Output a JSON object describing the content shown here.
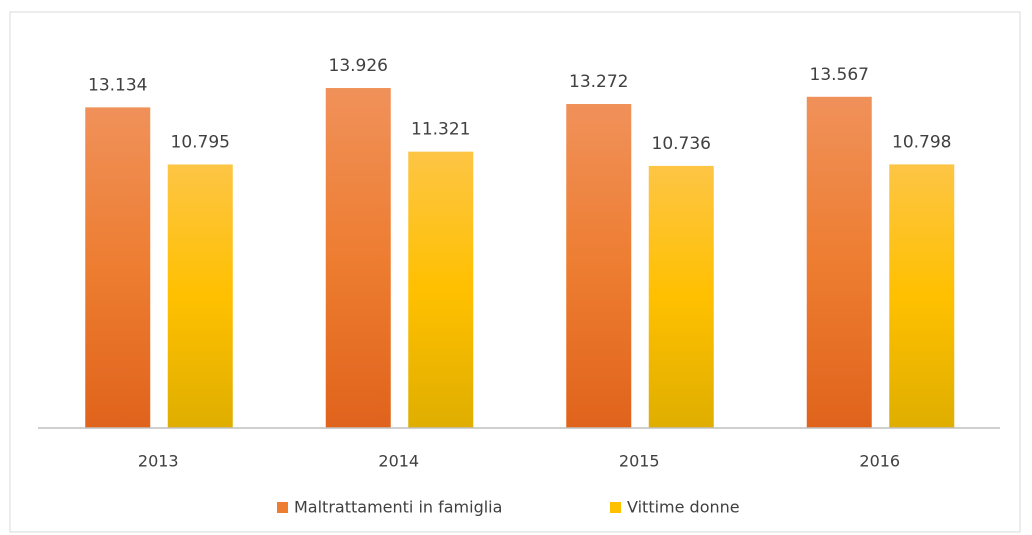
{
  "chart_data": {
    "type": "bar",
    "categories": [
      "2013",
      "2014",
      "2015",
      "2016"
    ],
    "series": [
      {
        "name": "Maltrattamenti in famiglia",
        "color": "#ed7d31",
        "values": [
          13134,
          13926,
          13272,
          13567
        ],
        "value_labels": [
          "13.134",
          "13.926",
          "13.272",
          "13.567"
        ]
      },
      {
        "name": "Vittime donne",
        "color": "#ffc000",
        "values": [
          10795,
          11321,
          10736,
          10798
        ],
        "value_labels": [
          "10.795",
          "11.321",
          "10.736",
          "10.798"
        ]
      }
    ],
    "ylim": [
      0,
      16000
    ],
    "legend": "bottom"
  }
}
